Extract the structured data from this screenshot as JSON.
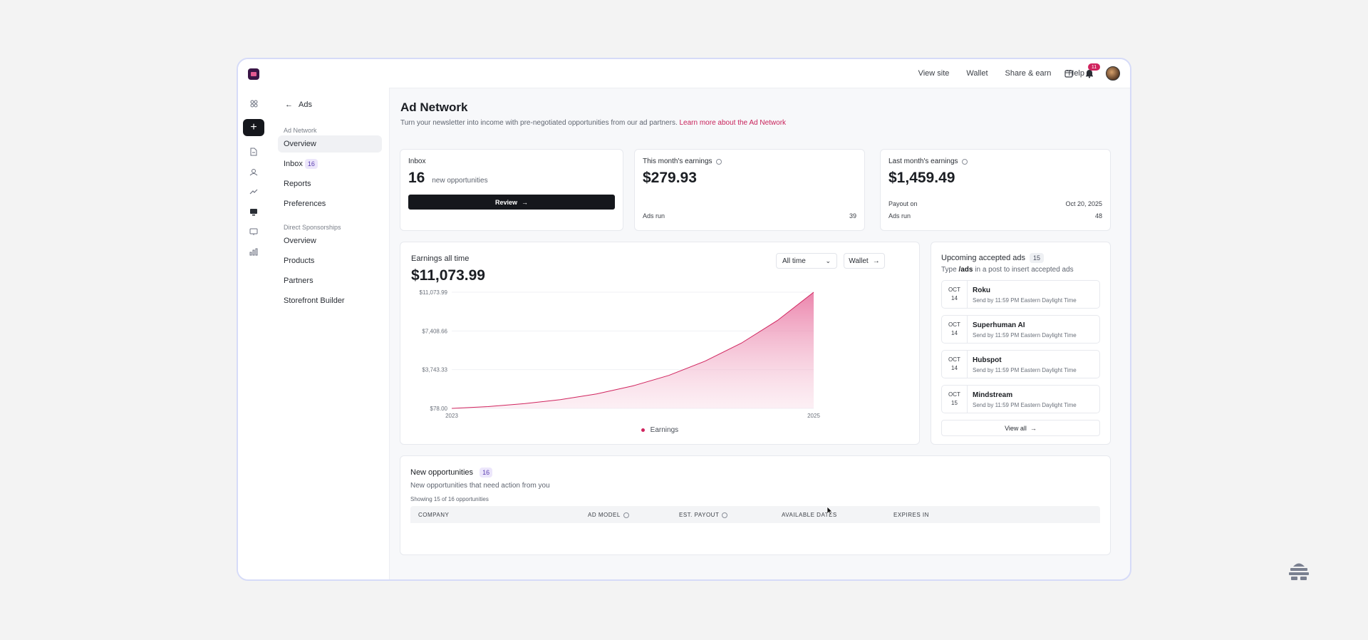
{
  "topbar": {
    "links": [
      "View site",
      "Wallet",
      "Share & earn",
      "Help"
    ],
    "notification_count": "11"
  },
  "sidebar": {
    "back_label": "Ads",
    "ad_network_label": "Ad Network",
    "ad_network_items": [
      {
        "label": "Overview",
        "active": true
      },
      {
        "label": "Inbox",
        "badge": "16"
      },
      {
        "label": "Reports"
      },
      {
        "label": "Preferences"
      }
    ],
    "direct_label": "Direct Sponsorships",
    "direct_items": [
      {
        "label": "Overview"
      },
      {
        "label": "Products"
      },
      {
        "label": "Partners"
      },
      {
        "label": "Storefront Builder"
      }
    ]
  },
  "page": {
    "title": "Ad Network",
    "subtitle": "Turn your newsletter into income with pre-negotiated opportunities from our ad partners.",
    "subtitle_link": "Learn more about the Ad Network"
  },
  "inbox_card": {
    "title": "Inbox",
    "count": "16",
    "count_label": "new opportunities",
    "button": "Review"
  },
  "this_month": {
    "title": "This month's earnings",
    "amount": "$279.93",
    "ads_run_label": "Ads run",
    "ads_run": "39"
  },
  "last_month": {
    "title": "Last month's earnings",
    "amount": "$1,459.49",
    "payout_label": "Payout on",
    "payout_date": "Oct 20, 2025",
    "ads_run_label": "Ads run",
    "ads_run": "48"
  },
  "earnings": {
    "title": "Earnings all time",
    "amount": "$11,073.99",
    "range_select": "All time",
    "wallet_button": "Wallet",
    "legend": "Earnings"
  },
  "chart_data": {
    "type": "area",
    "x": [
      "2023",
      "2025"
    ],
    "x_ticks": [
      "2023",
      "2025"
    ],
    "y_ticks": [
      "$78.00",
      "$3,743.33",
      "$7,408.66",
      "$11,073.99"
    ],
    "ylim": [
      78,
      11073.99
    ],
    "series": [
      {
        "name": "Earnings",
        "points": [
          [
            0.0,
            78
          ],
          [
            0.1,
            250
          ],
          [
            0.2,
            520
          ],
          [
            0.3,
            900
          ],
          [
            0.4,
            1450
          ],
          [
            0.5,
            2200
          ],
          [
            0.6,
            3200
          ],
          [
            0.7,
            4550
          ],
          [
            0.8,
            6250
          ],
          [
            0.9,
            8400
          ],
          [
            1.0,
            11073.99
          ]
        ]
      }
    ],
    "colors": {
      "line": "#d0245e",
      "fill": "#ee8db2"
    }
  },
  "upcoming": {
    "title": "Upcoming accepted ads",
    "count": "15",
    "hint_prefix": "Type",
    "hint_code": "/ads",
    "hint_suffix": "in a post to insert accepted ads",
    "items": [
      {
        "month": "OCT",
        "day": "14",
        "name": "Roku",
        "send": "Send by 11:59 PM Eastern Daylight Time"
      },
      {
        "month": "OCT",
        "day": "14",
        "name": "Superhuman AI",
        "send": "Send by 11:59 PM Eastern Daylight Time"
      },
      {
        "month": "OCT",
        "day": "14",
        "name": "Hubspot",
        "send": "Send by 11:59 PM Eastern Daylight Time"
      },
      {
        "month": "OCT",
        "day": "15",
        "name": "Mindstream",
        "send": "Send by 11:59 PM Eastern Daylight Time"
      }
    ],
    "view_all": "View all"
  },
  "opportunities": {
    "title": "New opportunities",
    "count": "16",
    "subtitle": "New opportunities that need action from you",
    "showing": "Showing 15 of 16 opportunities",
    "columns": [
      "COMPANY",
      "AD MODEL",
      "EST. PAYOUT",
      "AVAILABLE DATES",
      "EXPIRES IN"
    ]
  }
}
